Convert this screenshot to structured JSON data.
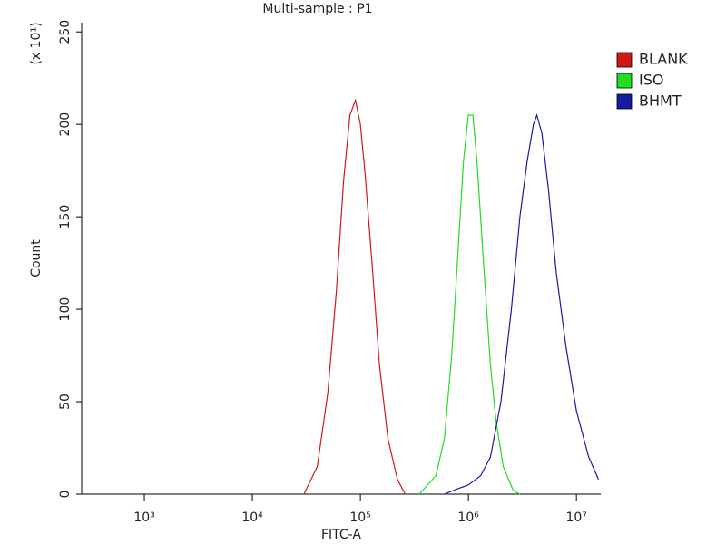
{
  "chart_data": {
    "type": "line",
    "title": "Multi-sample : P1",
    "x_label": "FITC-A",
    "y_label": "Count",
    "y_multiplier": "(x 10¹)",
    "xscale": "log",
    "xlim": [
      263,
      16800000
    ],
    "xticks": [
      {
        "value": 1000,
        "label": "10³"
      },
      {
        "value": 10000,
        "label": "10⁴"
      },
      {
        "value": 100000,
        "label": "10⁵"
      },
      {
        "value": 1000000,
        "label": "10⁶"
      },
      {
        "value": 10000000,
        "label": "10⁷"
      }
    ],
    "ylim": [
      0,
      255
    ],
    "yticks": [
      0,
      50,
      100,
      150,
      200,
      250
    ],
    "legend": "upper-right",
    "series": [
      {
        "name": "BLANK",
        "color": "#d01818",
        "x": [
          30000,
          40000,
          50000,
          60000,
          70000,
          80000,
          90000,
          100000,
          110000,
          130000,
          150000,
          180000,
          220000,
          260000
        ],
        "values": [
          0,
          15,
          55,
          110,
          170,
          205,
          213,
          200,
          175,
          120,
          70,
          30,
          8,
          0
        ]
      },
      {
        "name": "ISO",
        "color": "#22dd22",
        "x": [
          350000,
          500000,
          600000,
          700000,
          800000,
          900000,
          1000000,
          1100000,
          1200000,
          1400000,
          1600000,
          1800000,
          2100000,
          2600000,
          3000000
        ],
        "values": [
          0,
          10,
          30,
          75,
          130,
          180,
          205,
          205,
          180,
          120,
          70,
          40,
          15,
          2,
          0
        ]
      },
      {
        "name": "BHMT",
        "color": "#1a1aa0",
        "x": [
          600000,
          800000,
          1000000,
          1300000,
          1600000,
          2000000,
          2500000,
          3000000,
          3500000,
          4000000,
          4300000,
          4800000,
          5500000,
          6500000,
          8000000,
          10000000,
          13000000,
          16000000
        ],
        "values": [
          0,
          3,
          5,
          10,
          20,
          50,
          100,
          150,
          180,
          200,
          205,
          195,
          165,
          120,
          80,
          45,
          20,
          8
        ]
      }
    ]
  }
}
